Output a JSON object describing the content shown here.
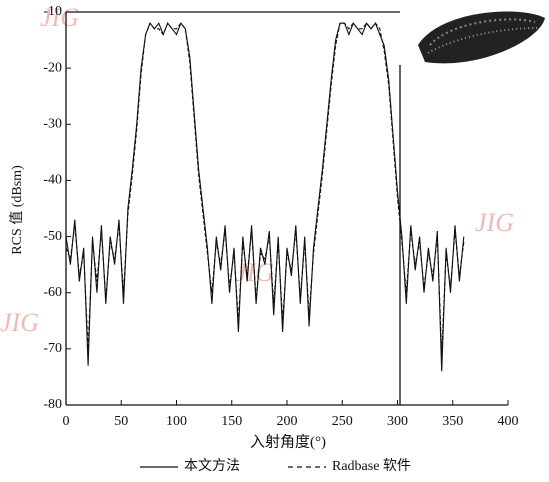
{
  "chart_data": {
    "type": "line",
    "xlabel": "入射角度(°)",
    "ylabel": "RCS 值 (dBsm)",
    "watermark": "JIG",
    "xlim": [
      0,
      400
    ],
    "xticks": [
      0,
      50,
      100,
      150,
      200,
      250,
      300,
      350,
      400
    ],
    "ylim": [
      -80,
      -10
    ],
    "yticks": [
      -80,
      -70,
      -60,
      -50,
      -40,
      -30,
      -20,
      -10
    ],
    "x": [
      0,
      4,
      8,
      12,
      16,
      20,
      24,
      28,
      32,
      36,
      40,
      44,
      48,
      52,
      56,
      60,
      64,
      68,
      72,
      76,
      80,
      84,
      88,
      92,
      96,
      100,
      104,
      108,
      112,
      116,
      120,
      124,
      128,
      132,
      136,
      140,
      144,
      148,
      152,
      156,
      160,
      164,
      168,
      172,
      176,
      180,
      184,
      188,
      192,
      196,
      200,
      204,
      208,
      212,
      216,
      220,
      224,
      228,
      232,
      236,
      240,
      244,
      248,
      252,
      256,
      260,
      264,
      268,
      272,
      276,
      280,
      284,
      288,
      292,
      296,
      300,
      304,
      308,
      312,
      316,
      320,
      324,
      328,
      332,
      336,
      340,
      344,
      348,
      352,
      356,
      360
    ],
    "series": [
      {
        "name": "本文方法",
        "color": "#111111",
        "dash": false,
        "values": [
          -50,
          -55,
          -47,
          -58,
          -52,
          -73,
          -50,
          -60,
          -48,
          -62,
          -50,
          -55,
          -47,
          -62,
          -45,
          -38,
          -30,
          -20,
          -14,
          -12,
          -13,
          -12,
          -14,
          -12,
          -13,
          -14,
          -12,
          -13,
          -18,
          -28,
          -38,
          -45,
          -52,
          -62,
          -50,
          -56,
          -48,
          -60,
          -52,
          -67,
          -50,
          -58,
          -48,
          -62,
          -52,
          -55,
          -49,
          -64,
          -50,
          -67,
          -52,
          -57,
          -48,
          -62,
          -50,
          -66,
          -52,
          -45,
          -38,
          -30,
          -22,
          -15,
          -12,
          -12,
          -14,
          -12,
          -13,
          -14,
          -12,
          -13,
          -12,
          -14,
          -16,
          -22,
          -32,
          -42,
          -50,
          -62,
          -48,
          -56,
          -50,
          -60,
          -52,
          -58,
          -49,
          -74,
          -52,
          -60,
          -48,
          -58,
          -50
        ]
      },
      {
        "name": "Radbase 软件",
        "color": "#111111",
        "dash": true,
        "values": [
          -52,
          -54,
          -48,
          -57,
          -53,
          -70,
          -51,
          -58,
          -49,
          -61,
          -51,
          -54,
          -48,
          -60,
          -46,
          -39,
          -31,
          -21,
          -14,
          -12,
          -13,
          -13,
          -14,
          -12,
          -13,
          -13,
          -12,
          -13,
          -19,
          -29,
          -39,
          -46,
          -53,
          -60,
          -51,
          -55,
          -49,
          -59,
          -53,
          -65,
          -51,
          -57,
          -49,
          -61,
          -53,
          -54,
          -50,
          -62,
          -51,
          -65,
          -53,
          -56,
          -49,
          -61,
          -51,
          -64,
          -53,
          -46,
          -39,
          -31,
          -23,
          -16,
          -12,
          -12,
          -13,
          -12,
          -13,
          -13,
          -12,
          -13,
          -12,
          -13,
          -17,
          -23,
          -33,
          -43,
          -51,
          -60,
          -49,
          -55,
          -51,
          -59,
          -53,
          -57,
          -50,
          -71,
          -53,
          -59,
          -49,
          -57,
          -51
        ]
      }
    ]
  }
}
